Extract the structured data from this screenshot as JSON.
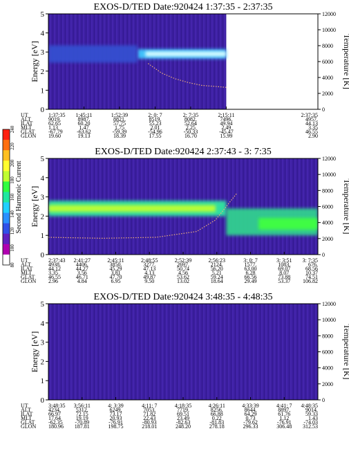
{
  "colors": {
    "background": "#3c1fa0",
    "trace": "#f0b07a",
    "colormap": [
      "#ffffff",
      "#b000b0",
      "#6020c0",
      "#3050e8",
      "#2a90ff",
      "#20d0ff",
      "#20e8a0",
      "#30ff40",
      "#c0ff30",
      "#ffff30",
      "#ffc020",
      "#ff7010",
      "#ff2010"
    ]
  },
  "colorbar": {
    "label": "Second Harmonic Current",
    "ticks": [
      "80",
      "100",
      "120",
      "140",
      "160",
      "180",
      "200",
      "220",
      "240"
    ]
  },
  "chart_data": [
    {
      "type": "heatmap",
      "title": "EXOS-D/TED   Date:920424   1:37:35 - 2:37:35",
      "ylabel": "Energy [eV]",
      "y2label": "Temperature [K]",
      "ylim": [
        0,
        5
      ],
      "yticks": [
        "0",
        "1",
        "2",
        "3",
        "4",
        "5"
      ],
      "y2lim": [
        0,
        12000
      ],
      "y2ticks": [
        "0",
        "2000",
        "4000",
        "6000",
        "8000",
        "10000",
        "12000"
      ],
      "data_end_fraction": 0.66,
      "bands": [
        {
          "x0": 0.33,
          "x1": 0.66,
          "y": 2.9,
          "h": 0.5,
          "color": "#40c8ff"
        },
        {
          "x0": 0.36,
          "x1": 0.66,
          "y": 2.9,
          "h": 0.25,
          "color": "#e0ffff"
        },
        {
          "x0": 0.0,
          "x1": 0.33,
          "y": 2.9,
          "h": 0.9,
          "color": "#3450d0"
        }
      ],
      "trace": {
        "x": [
          0.37,
          0.42,
          0.47,
          0.52,
          0.57,
          0.62,
          0.66
        ],
        "y": [
          2.4,
          1.9,
          1.6,
          1.4,
          1.25,
          1.2,
          1.15
        ]
      },
      "table_rows": [
        {
          "label": "UT",
          "values": [
            "1:37:35",
            "1:45:11",
            "1:52:39",
            "2: 0: 7",
            "2: 7:35",
            "2:15:11",
            "2:37:35"
          ]
        },
        {
          "label": "ALT",
          "values": [
            "9019.",
            "8987.",
            "8821.",
            "8519.",
            "8082.",
            "7496.",
            "4957."
          ]
        },
        {
          "label": "ILAT",
          "values": [
            "62.65",
            "60.20",
            "57.75",
            "55.23",
            "52.64",
            "49.94",
            "44.13"
          ]
        },
        {
          "label": "MLT",
          "values": [
            "1.13",
            "1.47",
            "1.75",
            "2.01",
            "2.25",
            "2.49",
            "3.35"
          ]
        },
        {
          "label": "GLAT",
          "values": [
            "-67.79",
            "-63.62",
            "-59.39",
            "-54.96",
            "-50.33",
            "-45.47",
            "46.55"
          ]
        },
        {
          "label": "GLON",
          "values": [
            "19.60",
            "19.13",
            "18.39",
            "17.55",
            "16.70",
            "15.99",
            "2.90"
          ]
        }
      ]
    },
    {
      "type": "heatmap",
      "title": "EXOS-D/TED   Date:920424   2:37:43 - 3: 7:35",
      "ylabel": "Energy [eV]",
      "y2label": "Temperature [K]",
      "ylim": [
        0,
        5
      ],
      "yticks": [
        "0",
        "1",
        "2",
        "3",
        "4",
        "5"
      ],
      "y2lim": [
        0,
        12000
      ],
      "y2ticks": [
        "0",
        "2000",
        "4000",
        "6000",
        "8000",
        "10000",
        "12000"
      ],
      "data_end_fraction": 1.0,
      "bands": [
        {
          "x0": 0.0,
          "x1": 0.66,
          "y": 2.4,
          "h": 0.8,
          "color": "#30e8a0"
        },
        {
          "x0": 0.0,
          "x1": 0.62,
          "y": 2.4,
          "h": 0.35,
          "color": "#c0ff30"
        },
        {
          "x0": 0.66,
          "x1": 1.0,
          "y": 1.7,
          "h": 1.4,
          "color": "#30d090"
        },
        {
          "x0": 0.78,
          "x1": 1.0,
          "y": 1.6,
          "h": 0.6,
          "color": "#40ff40"
        }
      ],
      "trace": {
        "x": [
          0.0,
          0.2,
          0.4,
          0.55,
          0.62,
          0.7
        ],
        "y": [
          0.9,
          0.85,
          0.9,
          1.2,
          1.8,
          3.2
        ]
      },
      "table_rows": [
        {
          "label": "UT",
          "values": [
            "2:37:43",
            "2:41:27",
            "2:45:11",
            "2:48:55",
            "2:52:39",
            "2:56:23",
            "3: 0: 7",
            "3: 3:51",
            "3: 7:35"
          ]
        },
        {
          "label": "ALT",
          "values": [
            "4938.",
            "4406.",
            "3850.",
            "3277.",
            "2697.",
            "2124.",
            "1577.",
            "1083.",
            "676."
          ]
        },
        {
          "label": "ILAT",
          "values": [
            "44.12",
            "44.27",
            "45.29",
            "47.13",
            "50.74",
            "56.20",
            "63.00",
            "69.07",
            "68.56"
          ]
        },
        {
          "label": "MLT",
          "values": [
            "3.35",
            "3.56",
            "3.81",
            "4.13",
            "4.56",
            "5.21",
            "6.28",
            "8.07",
            "10.37"
          ]
        },
        {
          "label": "GLAT",
          "values": [
            "46.55",
            "46.71",
            "47.70",
            "49.87",
            "53.62",
            "59.24",
            "66.56",
            "73.88",
            "74.51"
          ]
        },
        {
          "label": "GLON",
          "values": [
            "2.96",
            "4.84",
            "6.95",
            "9.50",
            "13.02",
            "18.64",
            "29.49",
            "53.37",
            "106.82"
          ]
        }
      ]
    },
    {
      "type": "heatmap",
      "title": "EXOS-D/TED   Date:920424   3:48:35 - 4:48:35",
      "ylabel": "Energy [eV]",
      "y2label": "Temperature [K]",
      "ylim": [
        0,
        5
      ],
      "yticks": [
        "0",
        "1",
        "2",
        "3",
        "4",
        "5"
      ],
      "y2lim": [
        0,
        12000
      ],
      "y2ticks": [
        "0",
        "2000",
        "4000",
        "6000",
        "8000",
        "10000",
        "12000"
      ],
      "data_end_fraction": 1.0,
      "bands": [],
      "trace": {
        "x": [],
        "y": []
      },
      "table_rows": [
        {
          "label": "UT",
          "values": [
            "3:48:35",
            "3:56:11",
            "4: 3:39",
            "4:11: 7",
            "4:18:35",
            "4:26:11",
            "4:33:39",
            "4:41: 7",
            "4:48:35"
          ]
        },
        {
          "label": "ALT",
          "values": [
            "4234.",
            "5312.",
            "6249.",
            "7053.",
            "7719.",
            "8256.",
            "8644.",
            "8897.",
            "9014."
          ]
        },
        {
          "label": "ILAT",
          "values": [
            "66.97",
            "72.15",
            "73.17",
            "71.82",
            "69.51",
            "66.88",
            "64.29",
            "61.76",
            "59.33"
          ]
        },
        {
          "label": "MLT",
          "values": [
            "17.64",
            "19.19",
            "20.93",
            "22.43",
            "23.49",
            "0.22",
            "0.73",
            "1.12",
            "1.43"
          ]
        },
        {
          "label": "GLAT",
          "values": [
            "-62.35",
            "-70.89",
            "-76.91",
            "-80.93",
            "-82.63",
            "-81.83",
            "-79.62",
            "-76.91",
            "-74.03"
          ]
        },
        {
          "label": "GLON",
          "values": [
            "180.96",
            "187.81",
            "198.75",
            "218.01",
            "248.20",
            "278.18",
            "296.33",
            "306.48",
            "312.53"
          ]
        }
      ]
    }
  ]
}
